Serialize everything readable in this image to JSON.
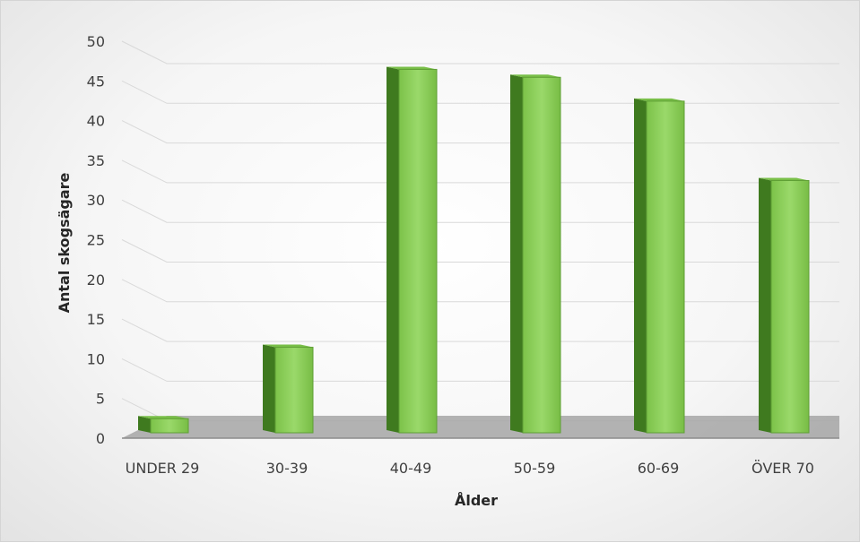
{
  "chart_data": {
    "type": "bar",
    "categories": [
      "UNDER 29",
      "30-39",
      "40-49",
      "50-59",
      "60-69",
      "ÖVER 70"
    ],
    "values": [
      2,
      11,
      46,
      45,
      42,
      32
    ],
    "title": "",
    "xlabel": "Ålder",
    "ylabel": "Antal skogsägare",
    "ylim": [
      0,
      50
    ],
    "yticks": [
      0,
      5,
      10,
      15,
      20,
      25,
      30,
      35,
      40,
      45,
      50
    ],
    "grid": true,
    "legend": "none",
    "style": "3d-column"
  },
  "colors": {
    "bar_front": "#8fcf5c",
    "bar_side": "#3f7a1f",
    "bar_top": "#79bf48",
    "floor": "#a6a6a6",
    "gridline": "#d9d9d9"
  }
}
